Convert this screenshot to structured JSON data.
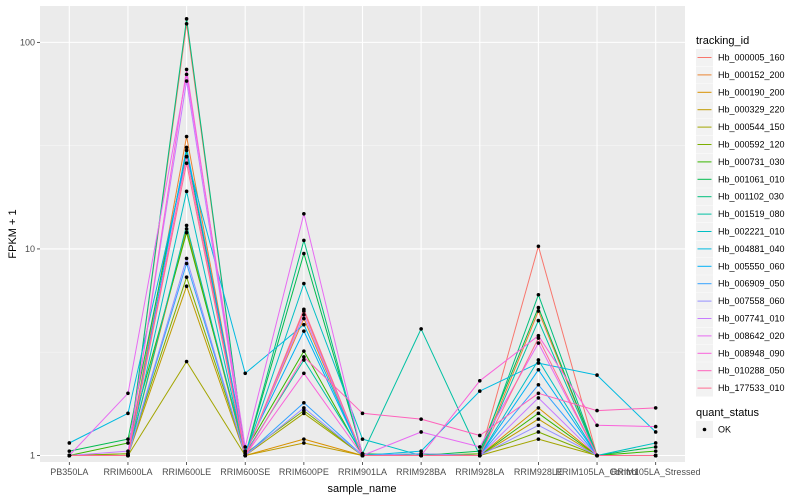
{
  "chart_data": {
    "type": "line",
    "xlabel": "sample_name",
    "ylabel": "FPKM + 1",
    "y_scale": "log10",
    "ylim": [
      0.93,
      150
    ],
    "y_ticks": [
      1,
      10,
      100
    ],
    "y_tick_labels": [
      "1",
      "10",
      "100"
    ],
    "grid": true,
    "legend_placement": "right",
    "categories": [
      "PB350LA",
      "RRIM600LA",
      "RRIM600LE",
      "RRIM600SE",
      "RRIM600PE",
      "RRIM901LA",
      "RRIM928BA",
      "RRIM928LA",
      "RRIM928LE",
      "RRIM105LA_Control",
      "RRIM105LA_Stressed"
    ],
    "legend_title": "tracking_id",
    "status_legend": {
      "title": "quant_status",
      "label": "OK"
    },
    "series": [
      {
        "name": "Hb_000005_160",
        "color": "#F8766D",
        "values": [
          1.0,
          1.0,
          123,
          1.0,
          5.0,
          1.0,
          1.0,
          1.0,
          10.3,
          1.0,
          1.0
        ]
      },
      {
        "name": "Hb_000152_200",
        "color": "#EA8331",
        "values": [
          1.0,
          1.02,
          35,
          1.02,
          4.6,
          1.0,
          1.0,
          1.0,
          5.0,
          1.0,
          1.0
        ]
      },
      {
        "name": "Hb_000190_200",
        "color": "#D89000",
        "values": [
          1.0,
          1.0,
          12.5,
          1.0,
          1.2,
          1.0,
          1.0,
          1.0,
          1.7,
          1.0,
          1.0
        ]
      },
      {
        "name": "Hb_000329_220",
        "color": "#C09B00",
        "values": [
          1.0,
          1.0,
          6.6,
          1.0,
          1.15,
          1.0,
          1.0,
          1.0,
          1.5,
          1.0,
          1.0
        ]
      },
      {
        "name": "Hb_000544_150",
        "color": "#A3A500",
        "values": [
          1.0,
          1.0,
          2.85,
          1.0,
          1.6,
          1.0,
          1.0,
          1.0,
          1.2,
          1.0,
          1.0
        ]
      },
      {
        "name": "Hb_000592_120",
        "color": "#7CAE00",
        "values": [
          1.0,
          1.02,
          7.3,
          1.02,
          1.65,
          1.0,
          1.0,
          1.02,
          1.3,
          1.0,
          1.0
        ]
      },
      {
        "name": "Hb_000731_030",
        "color": "#39B600",
        "values": [
          1.0,
          1.15,
          12.0,
          1.05,
          3.2,
          1.0,
          1.02,
          1.0,
          1.6,
          1.0,
          1.05
        ]
      },
      {
        "name": "Hb_001061_010",
        "color": "#00BB4E",
        "values": [
          1.05,
          1.2,
          30,
          1.0,
          9.5,
          1.02,
          1.0,
          1.05,
          5.2,
          1.0,
          1.1
        ]
      },
      {
        "name": "Hb_001102_030",
        "color": "#00BF7D",
        "values": [
          1.0,
          1.0,
          130,
          1.0,
          11.0,
          1.0,
          1.0,
          1.0,
          6.0,
          1.0,
          1.0
        ]
      },
      {
        "name": "Hb_001519_080",
        "color": "#00C1A3",
        "values": [
          1.0,
          1.0,
          13.0,
          1.02,
          2.9,
          1.02,
          4.1,
          1.0,
          4.5,
          1.0,
          1.0
        ]
      },
      {
        "name": "Hb_002221_010",
        "color": "#00BFC4",
        "values": [
          1.0,
          1.0,
          19.0,
          1.0,
          6.8,
          1.2,
          1.0,
          1.0,
          2.9,
          1.0,
          1.15
        ]
      },
      {
        "name": "Hb_004881_040",
        "color": "#00BAE0",
        "values": [
          1.15,
          1.6,
          28,
          2.5,
          4.3,
          1.0,
          1.05,
          2.05,
          2.8,
          2.45,
          1.3
        ]
      },
      {
        "name": "Hb_005550_060",
        "color": "#00B0F6",
        "values": [
          1.0,
          1.0,
          31,
          1.05,
          4.0,
          1.0,
          1.0,
          1.0,
          2.6,
          1.0,
          1.0
        ]
      },
      {
        "name": "Hb_006909_050",
        "color": "#35A2FF",
        "values": [
          1.0,
          1.0,
          8.5,
          1.0,
          1.8,
          1.0,
          1.0,
          1.0,
          2.2,
          1.0,
          1.0
        ]
      },
      {
        "name": "Hb_007558_060",
        "color": "#9590FF",
        "values": [
          1.0,
          1.0,
          9.0,
          1.0,
          1.7,
          1.0,
          1.02,
          1.0,
          1.4,
          1.0,
          1.0
        ]
      },
      {
        "name": "Hb_007741_010",
        "color": "#C77CFF",
        "values": [
          1.0,
          1.05,
          65,
          1.0,
          4.8,
          1.0,
          1.0,
          1.0,
          1.9,
          1.0,
          1.0
        ]
      },
      {
        "name": "Hb_008642_020",
        "color": "#E76BF3",
        "values": [
          1.0,
          2.0,
          70,
          1.1,
          14.8,
          1.0,
          1.3,
          1.1,
          3.5,
          1.0,
          1.0
        ]
      },
      {
        "name": "Hb_008948_090",
        "color": "#FA62DB",
        "values": [
          1.0,
          1.0,
          74,
          1.0,
          2.5,
          1.0,
          1.0,
          2.3,
          3.8,
          1.4,
          1.38
        ]
      },
      {
        "name": "Hb_010288_050",
        "color": "#FF62BC",
        "values": [
          1.0,
          1.0,
          28,
          1.0,
          3.0,
          1.6,
          1.5,
          1.25,
          2.0,
          1.65,
          1.7
        ]
      },
      {
        "name": "Hb_177533_010",
        "color": "#FF6C91",
        "values": [
          1.0,
          1.0,
          26,
          1.0,
          5.1,
          1.0,
          1.0,
          1.0,
          3.7,
          1.0,
          1.0
        ]
      }
    ]
  }
}
